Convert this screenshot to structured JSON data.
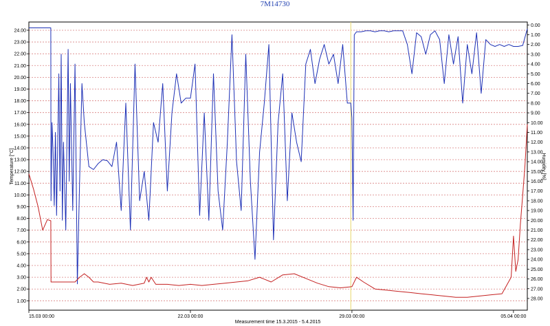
{
  "chart_data": {
    "type": "line",
    "title": "7M14730",
    "xlabel": "Measurement time  15.3.2015 - 5.4.2015",
    "ylabel_left": "Temperature [°C]",
    "ylabel_right": "Humidity [%]",
    "x_range_days": [
      0,
      21.6
    ],
    "x_ticks": [
      {
        "day": 0,
        "label": "15.03 00:00"
      },
      {
        "day": 7,
        "label": "22.03 00:00"
      },
      {
        "day": 14,
        "label": "29.03 00:00"
      },
      {
        "day": 21,
        "label": "05.04 00:00"
      }
    ],
    "ylim_left": [
      0.2,
      24.7
    ],
    "y_ticks_left": [
      "1.00",
      "2.00",
      "3.00",
      "4.00",
      "5.00",
      "6.00",
      "7.00",
      "8.00",
      "9.00",
      "10.00",
      "11.00",
      "12.00",
      "13.00",
      "14.00",
      "15.00",
      "16.00",
      "17.00",
      "18.00",
      "19.00",
      "20.00",
      "21.00",
      "22.00",
      "23.00",
      "24.00"
    ],
    "ylim_right_inverted": [
      -0.3,
      29.2
    ],
    "y_ticks_right": [
      "0.00",
      "1.00",
      "2.00",
      "3.00",
      "4.00",
      "5.00",
      "6.00",
      "7.00",
      "8.00",
      "9.00",
      "10.00",
      "11.00",
      "12.00",
      "13.00",
      "14.00",
      "15.00",
      "16.00",
      "17.00",
      "18.00",
      "19.00",
      "20.00",
      "21.00",
      "22.00",
      "23.00",
      "24.00",
      "25.00",
      "26.00",
      "27.00",
      "28.00"
    ],
    "grid": true,
    "marker_line_day": 13.95,
    "series": [
      {
        "axis": "right",
        "color": "#1c2fb5",
        "x": [
          0,
          0.95,
          0.96,
          1.0,
          1.05,
          1.1,
          1.15,
          1.2,
          1.3,
          1.35,
          1.4,
          1.45,
          1.5,
          1.6,
          1.7,
          1.75,
          1.8,
          1.9,
          2.0,
          2.1,
          2.2,
          2.3,
          2.4,
          2.6,
          2.8,
          3.0,
          3.2,
          3.4,
          3.6,
          3.8,
          4.0,
          4.2,
          4.4,
          4.6,
          4.8,
          5.0,
          5.2,
          5.4,
          5.6,
          5.8,
          6.0,
          6.2,
          6.4,
          6.6,
          6.8,
          7.0,
          7.2,
          7.4,
          7.6,
          7.8,
          8.0,
          8.2,
          8.4,
          8.6,
          8.8,
          9.0,
          9.2,
          9.4,
          9.6,
          9.8,
          10.0,
          10.2,
          10.4,
          10.6,
          10.8,
          11.0,
          11.2,
          11.4,
          11.6,
          11.8,
          12.0,
          12.2,
          12.4,
          12.6,
          12.8,
          13.0,
          13.2,
          13.4,
          13.6,
          13.8,
          13.95,
          14.0,
          14.05,
          14.1,
          14.2,
          14.4,
          14.6,
          14.8,
          15.0,
          15.2,
          15.4,
          15.6,
          15.8,
          16.0,
          16.2,
          16.4,
          16.6,
          16.8,
          17.0,
          17.2,
          17.4,
          17.6,
          17.8,
          18.0,
          18.2,
          18.4,
          18.6,
          18.8,
          19.0,
          19.2,
          19.4,
          19.6,
          19.8,
          20.0,
          20.2,
          20.4,
          20.6,
          20.8,
          21.0,
          21.2,
          21.4,
          21.6
        ],
        "values": [
          0.3,
          0.3,
          18.0,
          10.0,
          13.0,
          18.5,
          11.0,
          19.5,
          5.0,
          17.0,
          3.0,
          20.0,
          12.0,
          21.0,
          2.5,
          16.0,
          6.0,
          19.0,
          4.0,
          26.5,
          16.0,
          6.0,
          10.0,
          14.5,
          14.8,
          14.2,
          13.8,
          13.9,
          14.5,
          12.0,
          19.0,
          8.0,
          21.0,
          4.0,
          18.0,
          15.0,
          20.0,
          10.0,
          12.0,
          6.0,
          17.0,
          9.0,
          5.0,
          8.0,
          7.5,
          7.5,
          4.0,
          19.5,
          9.0,
          20.0,
          5.0,
          17.0,
          21.0,
          12.0,
          1.0,
          14.0,
          19.0,
          3.0,
          16.0,
          24.0,
          13.0,
          8.0,
          2.0,
          22.0,
          10.0,
          5.0,
          18.0,
          9.0,
          12.0,
          14.0,
          4.0,
          2.5,
          6.0,
          3.5,
          2.0,
          4.0,
          3.0,
          6.0,
          2.0,
          8.0,
          8.0,
          9.5,
          20.0,
          1.0,
          0.7,
          0.7,
          0.6,
          0.6,
          0.7,
          0.6,
          0.6,
          0.7,
          0.6,
          0.6,
          0.6,
          2.0,
          5.0,
          0.8,
          1.2,
          3.0,
          1.0,
          0.6,
          1.5,
          6.0,
          1.0,
          4.0,
          1.2,
          8.0,
          2.0,
          5.0,
          0.8,
          7.0,
          1.5,
          2.0,
          2.2,
          2.0,
          2.2,
          2.0,
          2.2,
          2.2,
          2.1,
          0.4
        ]
      },
      {
        "axis": "left",
        "color": "#c41f1f",
        "x": [
          0,
          0.2,
          0.4,
          0.6,
          0.8,
          0.95,
          0.96,
          1.2,
          1.6,
          2.0,
          2.2,
          2.4,
          2.6,
          2.8,
          3.0,
          3.5,
          4.0,
          4.5,
          5.0,
          5.1,
          5.2,
          5.3,
          5.5,
          6.0,
          6.5,
          7.0,
          7.5,
          8.0,
          8.5,
          9.0,
          9.5,
          10.0,
          10.5,
          11.0,
          11.5,
          12.0,
          12.5,
          13.0,
          13.5,
          14.0,
          14.2,
          14.5,
          15.0,
          15.5,
          16.0,
          16.5,
          17.0,
          17.5,
          18.0,
          18.5,
          19.0,
          19.5,
          20.0,
          20.5,
          20.7,
          20.9,
          21.0,
          21.1,
          21.2,
          21.3,
          21.4,
          21.5,
          21.6
        ],
        "values": [
          11.8,
          10.5,
          9.0,
          7.0,
          7.9,
          7.8,
          2.6,
          2.6,
          2.6,
          2.6,
          3.0,
          3.3,
          3.0,
          2.6,
          2.6,
          2.4,
          2.5,
          2.3,
          2.5,
          3.0,
          2.6,
          3.0,
          2.4,
          2.4,
          2.3,
          2.4,
          2.3,
          2.4,
          2.5,
          2.6,
          2.7,
          3.0,
          2.6,
          3.2,
          3.3,
          2.9,
          2.5,
          2.2,
          2.1,
          2.2,
          3.0,
          2.6,
          2.0,
          1.9,
          1.8,
          1.7,
          1.6,
          1.5,
          1.4,
          1.3,
          1.3,
          1.4,
          1.5,
          1.6,
          2.3,
          3.0,
          6.5,
          3.5,
          4.5,
          7.5,
          10.0,
          12.5,
          16.0
        ]
      }
    ]
  }
}
